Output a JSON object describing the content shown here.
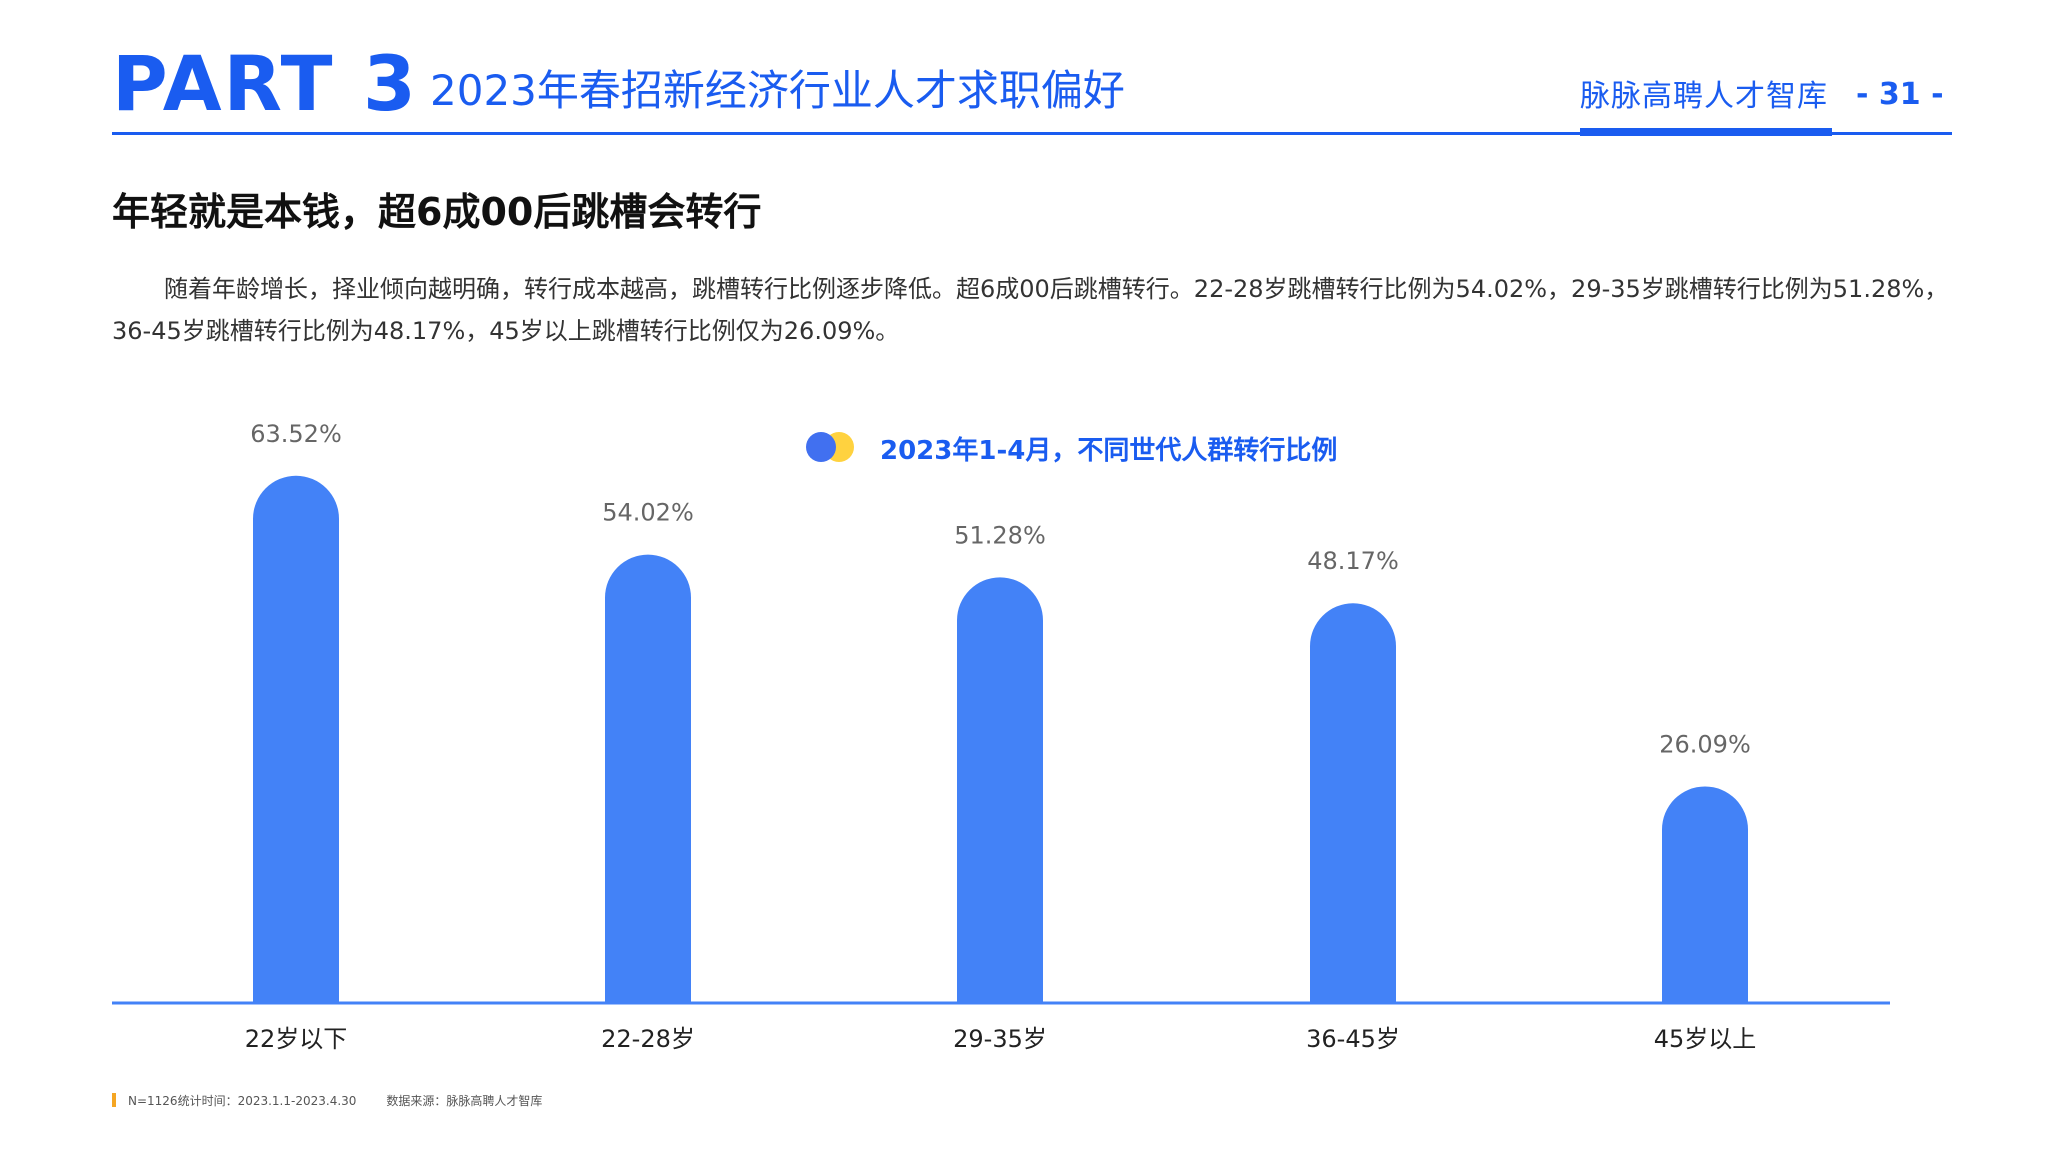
{
  "header": {
    "part_label": "PART 3",
    "part_title": "2023年春招新经济行业人才求职偏好",
    "brand": "脉脉高聘人才智库",
    "page_number": "- 31 -"
  },
  "headline": "年轻就是本钱，超6成00后跳槽会转行",
  "body_text": "随着年龄增长，择业倾向越明确，转行成本越高，跳槽转行比例逐步降低。超6成00后跳槽转行。22-28岁跳槽转行比例为54.02%，29-35岁跳槽转行比例为51.28%，36-45岁跳槽转行比例为48.17%，45岁以上跳槽转行比例仅为26.09%。",
  "colors": {
    "accent": "#1a5cf0",
    "bar": "#4382f7",
    "legend_blue": "#4170f0",
    "legend_yellow": "#ffd23f",
    "footnote_mark": "#f5a623"
  },
  "chart_data": {
    "type": "bar",
    "title": "2023年1-4月，不同世代人群转行比例",
    "categories": [
      "22岁以下",
      "22-28岁",
      "29-35岁",
      "36-45岁",
      "45岁以上"
    ],
    "values": [
      63.52,
      54.02,
      51.28,
      48.17,
      26.09
    ],
    "value_labels": [
      "63.52%",
      "54.02%",
      "51.28%",
      "48.17%",
      "26.09%"
    ],
    "xlabel": "",
    "ylabel": "",
    "ylim": [
      0,
      70
    ],
    "grid": false,
    "legend": "top-center"
  },
  "footnote": {
    "sample": "N=1126统计时间：2023.1.1-2023.4.30",
    "source": "数据来源：脉脉高聘人才智库"
  }
}
